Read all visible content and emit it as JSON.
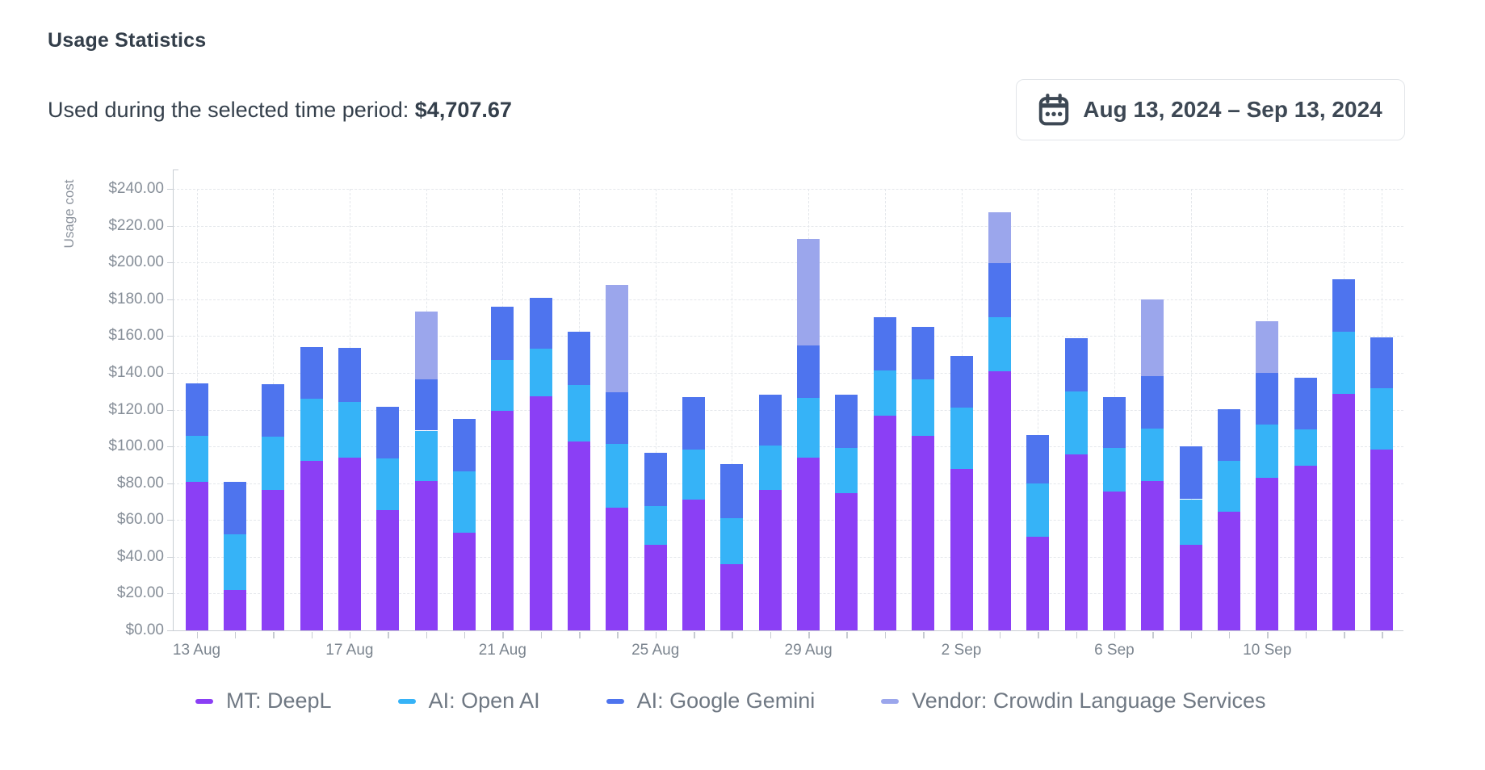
{
  "header": {
    "title": "Usage Statistics",
    "subtitle": "Used during the selected time period:",
    "amount": "$4,707.67"
  },
  "date_picker": {
    "icon": "calendar-icon",
    "label": "Aug 13, 2024 – Sep 13, 2024"
  },
  "chart_data": {
    "type": "bar",
    "stacked": true,
    "title": "",
    "xlabel": "",
    "ylabel": "Usage cost",
    "ylim": [
      0,
      250
    ],
    "grid": "dashed",
    "legend_position": "bottom",
    "y_ticks": [
      {
        "v": 0,
        "label": "$0.00"
      },
      {
        "v": 20,
        "label": "$20.00"
      },
      {
        "v": 40,
        "label": "$40.00"
      },
      {
        "v": 60,
        "label": "$60.00"
      },
      {
        "v": 80,
        "label": "$80.00"
      },
      {
        "v": 100,
        "label": "$100.00"
      },
      {
        "v": 120,
        "label": "$120.00"
      },
      {
        "v": 140,
        "label": "$140.00"
      },
      {
        "v": 160,
        "label": "$160.00"
      },
      {
        "v": 180,
        "label": "$180.00"
      },
      {
        "v": 200,
        "label": "$200.00"
      },
      {
        "v": 220,
        "label": "$220.00"
      },
      {
        "v": 240,
        "label": "$240.00"
      }
    ],
    "x_tick_labels": [
      {
        "index": 0,
        "label": "13 Aug"
      },
      {
        "index": 4,
        "label": "17 Aug"
      },
      {
        "index": 8,
        "label": "21 Aug"
      },
      {
        "index": 12,
        "label": "25 Aug"
      },
      {
        "index": 16,
        "label": "29 Aug"
      },
      {
        "index": 20,
        "label": "2 Sep"
      },
      {
        "index": 24,
        "label": "6 Sep"
      },
      {
        "index": 28,
        "label": "10 Sep"
      }
    ],
    "series": [
      {
        "name": "MT: DeepL",
        "color": "#8b3ff5",
        "values": [
          80.7,
          21.9,
          76.4,
          92.0,
          93.8,
          65.2,
          81.2,
          53.3,
          119.3,
          127.4,
          102.6,
          66.7,
          46.6,
          71.1,
          36.0,
          76.3,
          93.8,
          74.8,
          116.9,
          105.7,
          87.9,
          140.7,
          50.9,
          95.6,
          75.6,
          81.2,
          46.6,
          64.6,
          83.0,
          89.3,
          128.6,
          98.5
        ]
      },
      {
        "name": "AI: Open AI",
        "color": "#36b3f7",
        "values": [
          25.0,
          30.2,
          29.0,
          33.9,
          30.3,
          28.1,
          27.4,
          33.1,
          27.5,
          25.6,
          30.9,
          34.7,
          20.8,
          27.4,
          25.2,
          24.1,
          32.6,
          24.2,
          24.6,
          30.7,
          33.0,
          29.4,
          28.8,
          34.2,
          23.4,
          28.5,
          24.7,
          27.7,
          28.9,
          20.0,
          33.6,
          33.1
        ]
      },
      {
        "name": "AI: Google Gemini",
        "color": "#4e74ee",
        "values": [
          28.5,
          28.6,
          28.4,
          28.3,
          29.5,
          28.2,
          27.8,
          28.7,
          29.1,
          28.0,
          28.8,
          27.9,
          29.0,
          28.3,
          29.2,
          27.9,
          28.6,
          29.3,
          28.6,
          28.7,
          28.4,
          29.5,
          26.7,
          28.9,
          27.8,
          28.5,
          28.8,
          27.8,
          28.2,
          28.2,
          28.5,
          27.7
        ]
      },
      {
        "name": "Vendor: Crowdin Language Services",
        "color": "#9ba6ec",
        "values": [
          0,
          0,
          0,
          0,
          0,
          0,
          37.1,
          0,
          0,
          0,
          0,
          58.4,
          0,
          0,
          0,
          0,
          58.0,
          0,
          0,
          0,
          0,
          27.5,
          0,
          0,
          0,
          41.8,
          0,
          0,
          28.0,
          0,
          0,
          0
        ]
      }
    ]
  }
}
